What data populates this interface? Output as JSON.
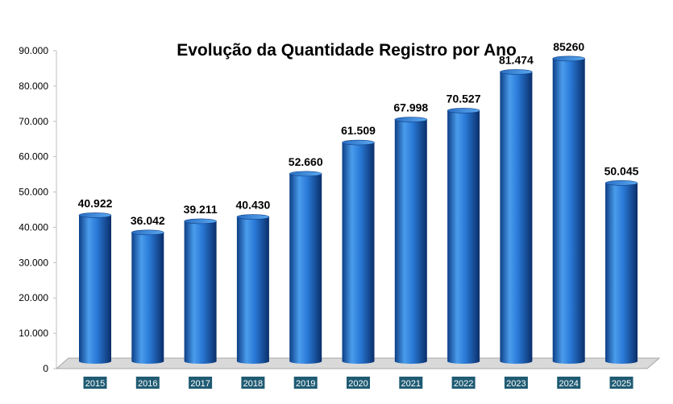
{
  "chart_data": {
    "type": "bar",
    "title": "Evolução da Quantidade Registro por Ano",
    "xlabel": "",
    "ylabel": "",
    "categories": [
      "2015",
      "2016",
      "2017",
      "2018",
      "2019",
      "2020",
      "2021",
      "2022",
      "2023",
      "2024",
      "2025"
    ],
    "values": [
      40922,
      36042,
      39211,
      40430,
      52660,
      61509,
      67998,
      70527,
      81474,
      85260,
      50045
    ],
    "data_labels": [
      "40.922",
      "36.042",
      "39.211",
      "40.430",
      "52.660",
      "61.509",
      "67.998",
      "70.527",
      "81.474",
      "85260",
      "50.045"
    ],
    "ylim": [
      0,
      90000
    ],
    "yticks": [
      0,
      10000,
      20000,
      30000,
      40000,
      50000,
      60000,
      70000,
      80000,
      90000
    ],
    "ytick_labels": [
      "0",
      "10.000",
      "20.000",
      "30.000",
      "40.000",
      "50.000",
      "60.000",
      "70.000",
      "80.000",
      "90.000"
    ],
    "grid": false,
    "legend": "none",
    "style": "3d-cylinder",
    "colors": {
      "bar_light": "#5aa8f0",
      "bar_mid": "#1e6fd0",
      "bar_dark": "#0d3f86",
      "bar_top": "#3e8ee6",
      "floor": "#d9d9d9",
      "category_label_bg": "#1f5b73",
      "category_label_text": "#ffffff"
    }
  }
}
